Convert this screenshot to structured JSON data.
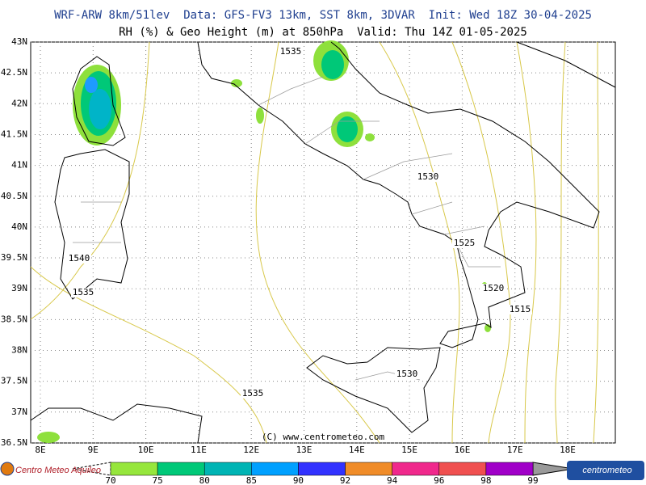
{
  "header": {
    "line1": "WRF-ARW 8km/51lev  Data: GFS-FV3 13km, SST 8km, 3DVAR  Init: Wed 18Z 30-04-2025",
    "line2": "RH (%) & Geo Height (m) at 850hPa  Valid: Thu 14Z 01-05-2025"
  },
  "map": {
    "latitudes": [
      {
        "value": 43,
        "label": "43N"
      },
      {
        "value": 42.5,
        "label": "42.5N"
      },
      {
        "value": 42,
        "label": "42N"
      },
      {
        "value": 41.5,
        "label": "41.5N"
      },
      {
        "value": 41,
        "label": "41N"
      },
      {
        "value": 40.5,
        "label": "40.5N"
      },
      {
        "value": 40,
        "label": "40N"
      },
      {
        "value": 39.5,
        "label": "39.5N"
      },
      {
        "value": 39,
        "label": "39N"
      },
      {
        "value": 38.5,
        "label": "38.5N"
      },
      {
        "value": 38,
        "label": "38N"
      },
      {
        "value": 37.5,
        "label": "37.5N"
      },
      {
        "value": 37,
        "label": "37N"
      },
      {
        "value": 36.5,
        "label": "36.5N"
      }
    ],
    "longitudes": [
      {
        "value": 8,
        "label": "8E"
      },
      {
        "value": 9,
        "label": "9E"
      },
      {
        "value": 10,
        "label": "10E"
      },
      {
        "value": 11,
        "label": "11E"
      },
      {
        "value": 12,
        "label": "12E"
      },
      {
        "value": 13,
        "label": "13E"
      },
      {
        "value": 14,
        "label": "14E"
      },
      {
        "value": 15,
        "label": "15E"
      },
      {
        "value": 16,
        "label": "16E"
      },
      {
        "value": 17,
        "label": "17E"
      },
      {
        "value": 18,
        "label": "18E"
      }
    ],
    "contour_labels": [
      "1535",
      "1530",
      "1525",
      "1520",
      "1515",
      "1540",
      "1535",
      "1530",
      "1535"
    ]
  },
  "copyright": "(C) www.centrometeo.com",
  "colorbar": {
    "labels": [
      "70",
      "75",
      "80",
      "85",
      "90",
      "92",
      "94",
      "96",
      "98",
      "99"
    ],
    "colors": [
      "#96e63c",
      "#00c878",
      "#00b4b4",
      "#00a0ff",
      "#3232ff",
      "#f08c28",
      "#f0288c",
      "#f05050",
      "#a000c8"
    ]
  },
  "logos": {
    "left": "Centro Meteo Aquileo",
    "right": "centrometeo"
  }
}
